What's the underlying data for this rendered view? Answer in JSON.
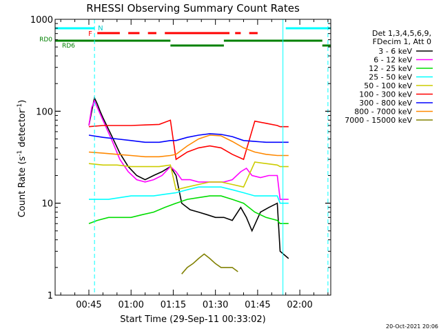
{
  "chart_data": {
    "type": "line",
    "title": "RHESSI Observing Summary Count Rates",
    "xlabel": "Start Time (29-Sep-11 00:33:02)",
    "ylabel_main": "Count Rate (s",
    "ylabel_sup1": "-1",
    "ylabel_mid": " detector",
    "ylabel_sup2": "-1",
    "ylabel_end": ")",
    "y_log": true,
    "ylim": [
      1,
      1000
    ],
    "xlim_minutes": [
      33,
      131
    ],
    "x_ticks": [
      {
        "m": 45,
        "label": "00:45"
      },
      {
        "m": 60,
        "label": "01:00"
      },
      {
        "m": 75,
        "label": "01:15"
      },
      {
        "m": 90,
        "label": "01:30"
      },
      {
        "m": 105,
        "label": "01:45"
      },
      {
        "m": 120,
        "label": "02:00"
      }
    ],
    "y_ticks": [
      {
        "v": 1,
        "label": "1"
      },
      {
        "v": 10,
        "label": "10"
      },
      {
        "v": 100,
        "label": "100"
      },
      {
        "v": 1000,
        "label": "1000"
      }
    ],
    "legend_header": [
      "Det 1,3,4,5,6,9,",
      "FDecim 1, Att 0"
    ],
    "series": [
      {
        "name": "3 - 6 keV",
        "color": "#000000",
        "x": [
          45,
          46,
          47,
          48,
          49,
          50,
          53,
          56,
          59,
          62,
          65,
          68,
          71,
          74,
          76,
          78,
          81,
          84,
          87,
          90,
          93,
          96,
          99,
          101,
          103,
          106,
          109,
          112,
          113,
          116
        ],
        "y": [
          70,
          100,
          140,
          120,
          100,
          85,
          55,
          35,
          25,
          20,
          18,
          20,
          22,
          25,
          20,
          10,
          8.5,
          8,
          7.5,
          7,
          7,
          6.5,
          9,
          7,
          5,
          8,
          9,
          10,
          3,
          2.5
        ]
      },
      {
        "name": "6 - 12 keV",
        "color": "#ff00ff",
        "x": [
          45,
          46,
          47,
          48,
          50,
          53,
          56,
          59,
          62,
          65,
          68,
          71,
          74,
          76,
          78,
          81,
          84,
          87,
          90,
          93,
          96,
          99,
          101,
          103,
          106,
          109,
          112,
          113,
          116
        ],
        "y": [
          70,
          110,
          130,
          110,
          80,
          50,
          30,
          22,
          18,
          17,
          18,
          20,
          25,
          22,
          18,
          18,
          17,
          17,
          17,
          17,
          18,
          22,
          24,
          20,
          19,
          20,
          20,
          11,
          11
        ]
      },
      {
        "name": "12 - 25 keV",
        "color": "#00dd00",
        "x": [
          45,
          48,
          52,
          56,
          60,
          64,
          68,
          72,
          76,
          80,
          84,
          88,
          92,
          96,
          100,
          104,
          108,
          112,
          113,
          116
        ],
        "y": [
          6,
          6.5,
          7,
          7,
          7,
          7.5,
          8,
          9,
          10,
          11,
          11.5,
          12,
          12,
          11,
          10,
          8,
          7,
          6.5,
          6,
          6
        ]
      },
      {
        "name": "25 - 50 keV",
        "color": "#00ffff",
        "x": [
          45,
          48,
          52,
          56,
          60,
          64,
          68,
          72,
          76,
          80,
          84,
          88,
          92,
          96,
          100,
          104,
          108,
          112,
          113,
          116
        ],
        "y": [
          11,
          11,
          11,
          11.5,
          12,
          12,
          12,
          12.5,
          13,
          14,
          15,
          15,
          15,
          14,
          13,
          12,
          12,
          12,
          10,
          10
        ]
      },
      {
        "name": "50 - 100 keV",
        "color": "#cccc00",
        "x": [
          45,
          50,
          55,
          60,
          65,
          70,
          74,
          76,
          80,
          84,
          88,
          92,
          96,
          100,
          104,
          108,
          112,
          113,
          116
        ],
        "y": [
          27,
          26,
          26,
          25,
          25,
          25,
          26,
          14,
          15,
          16,
          17,
          17,
          16,
          15,
          28,
          27,
          26,
          25,
          25
        ]
      },
      {
        "name": "100 - 300 keV",
        "color": "#ff0000",
        "x": [
          45,
          50,
          55,
          60,
          65,
          70,
          74,
          76,
          80,
          84,
          88,
          92,
          96,
          100,
          104,
          108,
          112,
          113,
          116
        ],
        "y": [
          68,
          70,
          70,
          70,
          71,
          72,
          80,
          30,
          36,
          40,
          42,
          40,
          34,
          30,
          78,
          74,
          70,
          68,
          68
        ]
      },
      {
        "name": "300 - 800 keV",
        "color": "#0000ff",
        "x": [
          45,
          50,
          55,
          60,
          65,
          70,
          74,
          76,
          80,
          84,
          88,
          92,
          96,
          100,
          104,
          108,
          112,
          113,
          116
        ],
        "y": [
          55,
          52,
          50,
          48,
          46,
          46,
          48,
          48,
          52,
          55,
          57,
          56,
          53,
          48,
          47,
          46,
          46,
          46,
          46
        ]
      },
      {
        "name": "800 - 7000 keV",
        "color": "#ff8800",
        "x": [
          45,
          50,
          55,
          60,
          65,
          70,
          74,
          76,
          80,
          84,
          88,
          92,
          96,
          100,
          104,
          108,
          112,
          113,
          116
        ],
        "y": [
          36,
          35,
          34,
          33,
          32,
          32,
          33,
          34,
          42,
          50,
          55,
          54,
          47,
          40,
          36,
          34,
          33,
          33,
          33
        ]
      },
      {
        "name": "7000 - 15000 keV",
        "color": "#808000",
        "x": [
          78,
          80,
          82,
          84,
          86,
          88,
          90,
          92,
          94,
          96,
          98
        ],
        "y": [
          1.7,
          2,
          2.2,
          2.5,
          2.8,
          2.5,
          2.2,
          2,
          2,
          2,
          1.8
        ]
      }
    ],
    "annotations": {
      "N": "N",
      "F": "F",
      "RD0": "RD0",
      "RD6": "RD6",
      "cyan_bar": [
        [
          33,
          47
        ],
        [
          115,
          131
        ]
      ],
      "red_bar": [
        [
          48,
          56
        ],
        [
          59,
          63
        ],
        [
          66,
          69
        ],
        [
          72,
          95
        ],
        [
          97,
          99
        ],
        [
          102,
          105
        ]
      ],
      "green_bar_upper": [
        [
          33,
          74
        ],
        [
          93,
          128
        ]
      ],
      "green_bar_lower": [
        [
          74,
          93
        ],
        [
          128,
          131
        ]
      ],
      "vlines_cyan_dashed": [
        47,
        130
      ],
      "vlines_cyan_solid": [
        33,
        114
      ]
    },
    "timestamp": "20-Oct-2021 20:06"
  }
}
